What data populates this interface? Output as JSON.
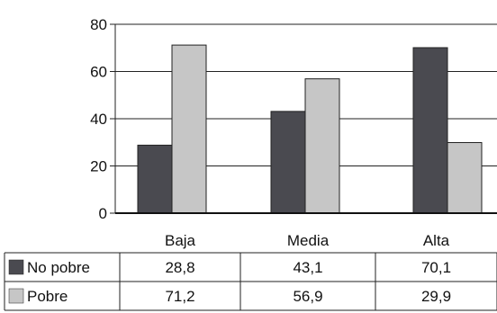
{
  "chart_data": {
    "type": "bar",
    "categories": [
      "Baja",
      "Media",
      "Alta"
    ],
    "series": [
      {
        "name": "No pobre",
        "color": "#4a4a50",
        "values": [
          28.8,
          43.1,
          70.1
        ]
      },
      {
        "name": "Pobre",
        "color": "#c6c6c6",
        "values": [
          71.2,
          56.9,
          29.9
        ]
      }
    ],
    "ylim": [
      0,
      80
    ],
    "yticks": [
      0,
      20,
      40,
      60,
      80
    ],
    "grid": true,
    "legend": "data-table",
    "table": {
      "rows": [
        {
          "label": "No pobre",
          "cells": [
            "28,8",
            "43,1",
            "70,1"
          ]
        },
        {
          "label": "Pobre",
          "cells": [
            "71,2",
            "56,9",
            "29,9"
          ]
        }
      ]
    }
  }
}
